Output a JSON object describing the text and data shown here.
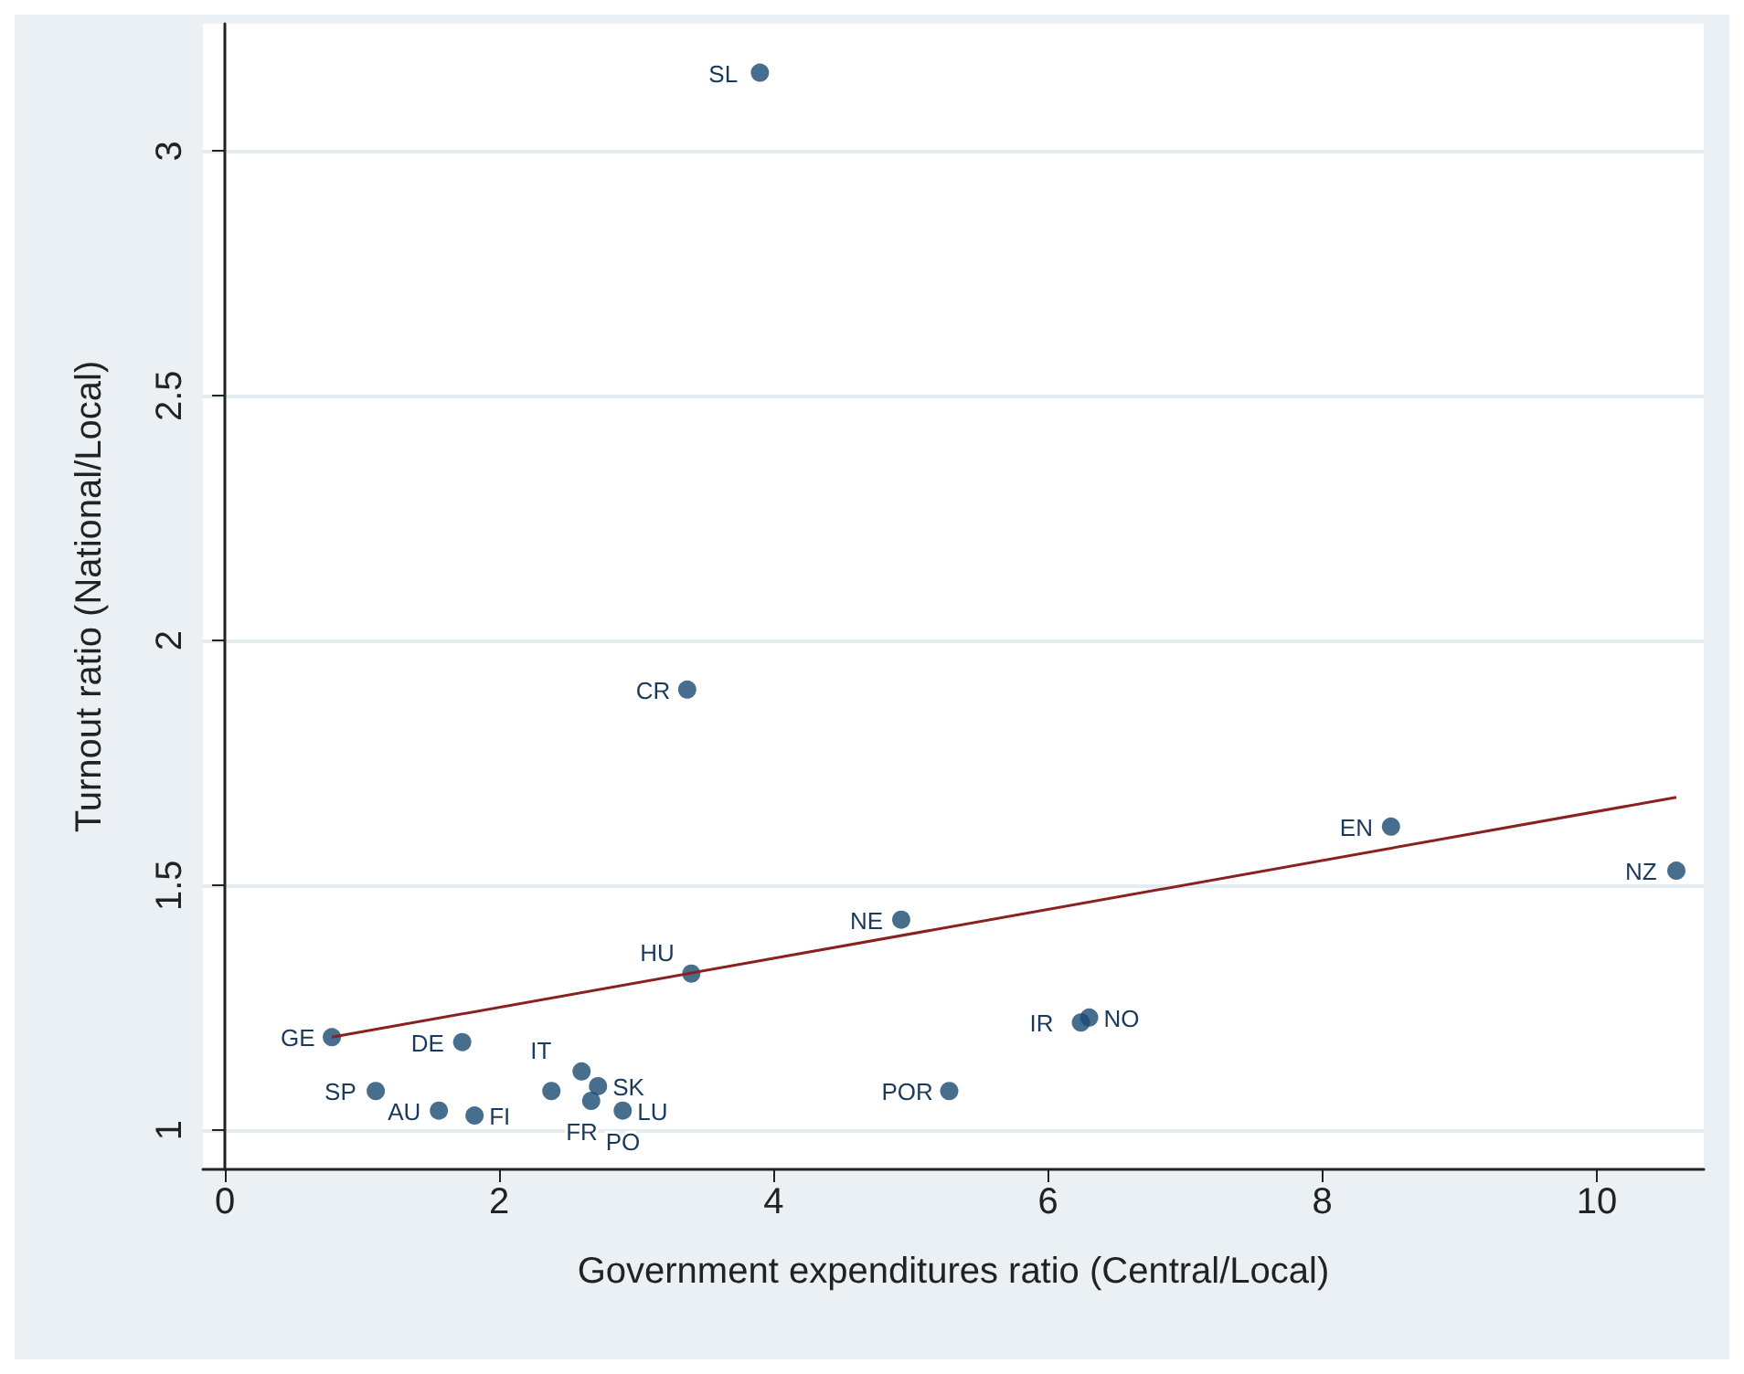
{
  "chart_data": {
    "type": "scatter",
    "xlabel": "Government expenditures ratio (Central/Local)",
    "ylabel": "Turnout ratio (National/Local)",
    "xlim": [
      -0.16,
      10.78
    ],
    "ylim": [
      0.92,
      3.26
    ],
    "xticks": [
      0,
      2,
      4,
      6,
      8,
      10
    ],
    "yticks": [
      1,
      1.5,
      2,
      2.5,
      3
    ],
    "grid": "y",
    "marker": "circle",
    "series": [
      {
        "type": "scatter",
        "color": "#1a4a72",
        "x": [
          3.9,
          3.37,
          8.5,
          10.58,
          4.93,
          3.4,
          6.3,
          6.24,
          0.78,
          1.73,
          5.28,
          2.6,
          1.1,
          1.56,
          1.82,
          2.38,
          2.72,
          2.67,
          2.9
        ],
        "values": [
          3.16,
          1.9,
          1.62,
          1.53,
          1.43,
          1.32,
          1.23,
          1.22,
          1.19,
          1.18,
          1.08,
          1.12,
          1.08,
          1.04,
          1.03,
          1.08,
          1.09,
          1.06,
          1.04
        ]
      },
      {
        "type": "line",
        "color": "#8b2020",
        "line_style": "solid",
        "marker": "none",
        "x": [
          0.78,
          10.58
        ],
        "values": [
          1.19,
          1.68
        ]
      }
    ],
    "annotations": [
      {
        "text": "SL",
        "x": 3.9,
        "y": 3.16
      },
      {
        "text": "CR",
        "x": 3.37,
        "y": 1.9
      },
      {
        "text": "EN",
        "x": 8.5,
        "y": 1.62
      },
      {
        "text": "NZ",
        "x": 10.58,
        "y": 1.53
      },
      {
        "text": "NE",
        "x": 4.93,
        "y": 1.43
      },
      {
        "text": "HU",
        "x": 3.4,
        "y": 1.32
      },
      {
        "text": "NO",
        "x": 6.3,
        "y": 1.23
      },
      {
        "text": "IR",
        "x": 6.24,
        "y": 1.22
      },
      {
        "text": "GE",
        "x": 0.78,
        "y": 1.19
      },
      {
        "text": "DE",
        "x": 1.73,
        "y": 1.18
      },
      {
        "text": "POR",
        "x": 5.28,
        "y": 1.08
      },
      {
        "text": "IT",
        "x": 2.6,
        "y": 1.12
      },
      {
        "text": "SP",
        "x": 1.1,
        "y": 1.08
      },
      {
        "text": "AU",
        "x": 1.56,
        "y": 1.04
      },
      {
        "text": "FI",
        "x": 1.82,
        "y": 1.03
      },
      {
        "text": "FR",
        "x": 2.38,
        "y": 1.08
      },
      {
        "text": "SK",
        "x": 2.72,
        "y": 1.09
      },
      {
        "text": "PO",
        "x": 2.67,
        "y": 1.06
      },
      {
        "text": "LU",
        "x": 2.9,
        "y": 1.04
      }
    ]
  }
}
